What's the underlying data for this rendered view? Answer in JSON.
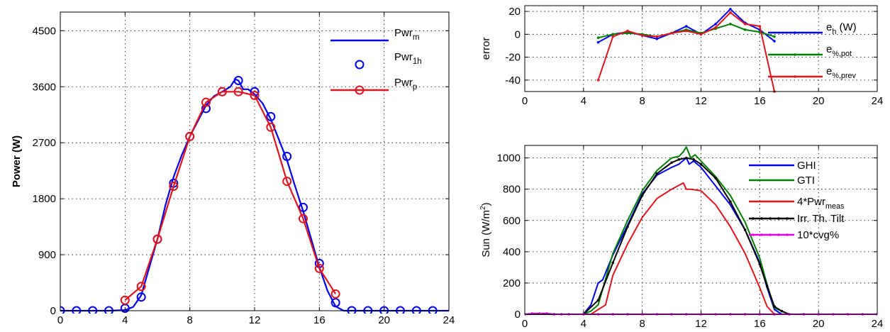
{
  "chart_data": [
    {
      "type": "line",
      "title": "",
      "xlabel": "",
      "ylabel": "Power (W)",
      "xlim": [
        0,
        24
      ],
      "ylim": [
        0,
        4800
      ],
      "xticks": [
        0,
        4,
        8,
        12,
        16,
        20,
        24
      ],
      "yticks": [
        0,
        900,
        1800,
        2700,
        3600,
        4500
      ],
      "grid": true,
      "legend_position": "top-right",
      "series": [
        {
          "label_main": "Pwr",
          "label_sub": "m",
          "style": "line",
          "color": "#0000ee",
          "x": [
            0,
            1,
            2,
            3,
            4,
            4.5,
            5,
            5.5,
            6,
            6.5,
            7,
            7.5,
            8,
            8.5,
            9,
            9.5,
            10,
            10.5,
            10.8,
            11,
            11.3,
            11.6,
            12,
            12.5,
            13,
            13.5,
            14,
            14.5,
            15,
            15.5,
            16,
            16.5,
            17,
            17.5,
            18,
            19,
            20,
            21,
            22,
            23,
            24
          ],
          "y": [
            0,
            0,
            0,
            0,
            10,
            60,
            250,
            700,
            1150,
            1700,
            2150,
            2500,
            2800,
            3050,
            3300,
            3450,
            3520,
            3600,
            3720,
            3700,
            3560,
            3560,
            3480,
            3330,
            3080,
            2750,
            2420,
            2000,
            1600,
            1150,
            700,
            320,
            70,
            0,
            0,
            0,
            0,
            0,
            0,
            0,
            0
          ]
        },
        {
          "label_main": "Pwr",
          "label_sub": "1h",
          "style": "markers",
          "color": "#0000ee",
          "x": [
            0,
            1,
            2,
            3,
            4,
            5,
            6,
            7,
            8,
            9,
            10,
            11,
            12,
            13,
            14,
            15,
            16,
            17,
            18,
            19,
            20,
            21,
            22,
            23
          ],
          "y": [
            0,
            0,
            0,
            0,
            40,
            220,
            1150,
            2050,
            2800,
            3250,
            3520,
            3700,
            3520,
            3120,
            2480,
            1660,
            760,
            130,
            0,
            0,
            0,
            0,
            0,
            0
          ]
        },
        {
          "label_main": "Pwr",
          "label_sub": "p",
          "style": "line+markers",
          "color": "#e0141c",
          "x": [
            4,
            5,
            6,
            7,
            8,
            9,
            10,
            11,
            12,
            13,
            14,
            15,
            16,
            17
          ],
          "y": [
            170,
            390,
            1150,
            2000,
            2800,
            3350,
            3520,
            3520,
            3460,
            2950,
            2080,
            1480,
            680,
            270
          ]
        }
      ]
    },
    {
      "type": "line",
      "title": "",
      "xlabel": "",
      "ylabel": "error",
      "xlim": [
        0,
        24
      ],
      "ylim": [
        -50,
        25
      ],
      "xticks": [
        0,
        4,
        8,
        12,
        16,
        20,
        24
      ],
      "yticks": [
        -40,
        -20,
        0,
        20
      ],
      "grid": true,
      "legend_position": "top-right",
      "series": [
        {
          "label_main": "e",
          "label_sub": "h",
          "label_suffix": " (W)",
          "color": "#0000ee",
          "x": [
            5,
            6,
            7,
            8,
            9,
            10,
            11,
            12,
            13,
            14,
            15,
            16,
            17
          ],
          "y": [
            -7,
            0,
            2,
            -1,
            -4,
            1,
            7,
            0,
            9,
            22,
            10,
            4,
            -6
          ]
        },
        {
          "label_main": "e",
          "label_sub": "%,pot",
          "label_suffix": "",
          "color": "#008000",
          "x": [
            5,
            6,
            7,
            8,
            9,
            10,
            11,
            12,
            13,
            14,
            15,
            16,
            17
          ],
          "y": [
            -3,
            0,
            1,
            0,
            -2,
            1,
            4,
            1,
            5,
            9,
            4,
            2,
            -2
          ]
        },
        {
          "label_main": "e",
          "label_sub": "%,prev",
          "label_suffix": "",
          "color": "#e0141c",
          "x": [
            5,
            6,
            7,
            8,
            9,
            10,
            11,
            12,
            13,
            14,
            15,
            16,
            17
          ],
          "y": [
            -40,
            -2,
            3,
            -1,
            -2,
            1,
            3,
            0,
            6,
            19,
            9,
            7,
            -50
          ]
        }
      ]
    },
    {
      "type": "line",
      "title": "",
      "xlabel": "",
      "ylabel": "Sun (W/m",
      "ylabel_sup": "2",
      "ylabel_end": ")",
      "xlim": [
        0,
        24
      ],
      "ylim": [
        0,
        1080
      ],
      "xticks": [
        0,
        4,
        8,
        12,
        16,
        20,
        24
      ],
      "yticks": [
        0,
        200,
        400,
        600,
        800,
        1000
      ],
      "grid": true,
      "legend_position": "top-right",
      "series": [
        {
          "label_main": "GHI",
          "label_sub": "",
          "color": "#0000ee",
          "markers": false,
          "x": [
            0,
            4,
            4.5,
            5,
            5.3,
            6,
            7,
            8,
            9,
            10,
            10.5,
            11,
            11.2,
            11.5,
            12,
            13,
            14,
            15,
            16,
            16.5,
            17,
            17.5,
            18,
            24
          ],
          "y": [
            0,
            0,
            60,
            200,
            220,
            380,
            570,
            770,
            890,
            940,
            960,
            1000,
            960,
            980,
            940,
            820,
            700,
            540,
            330,
            170,
            30,
            0,
            0,
            0
          ]
        },
        {
          "label_main": "GTI",
          "label_sub": "",
          "color": "#008000",
          "markers": false,
          "x": [
            0,
            4,
            4.5,
            5,
            6,
            7,
            8,
            9,
            10,
            10.5,
            10.8,
            11,
            11.3,
            11.6,
            12,
            13,
            14,
            15,
            16,
            16.5,
            17,
            18,
            24
          ],
          "y": [
            0,
            0,
            20,
            60,
            390,
            600,
            790,
            920,
            1000,
            1010,
            1040,
            1070,
            1000,
            1020,
            980,
            880,
            760,
            590,
            360,
            190,
            40,
            0,
            0
          ]
        },
        {
          "label_main": "4*Pwr",
          "label_sub": "meas",
          "color": "#e0141c",
          "markers": false,
          "x": [
            0,
            4.5,
            5,
            5.5,
            6,
            7,
            8,
            9,
            10,
            10.8,
            11,
            11.3,
            12,
            13,
            14,
            15,
            16,
            16.5,
            17,
            24
          ],
          "y": [
            0,
            0,
            30,
            60,
            250,
            450,
            620,
            740,
            800,
            840,
            800,
            800,
            790,
            700,
            560,
            390,
            170,
            50,
            0,
            0
          ]
        },
        {
          "label_main": "Irr. Th. Tilt",
          "label_sub": "",
          "color": "#000000",
          "markers": true,
          "x": [
            0,
            4,
            5,
            6,
            7,
            8,
            9,
            10,
            10.5,
            11,
            11.5,
            12,
            13,
            14,
            15,
            16,
            16.5,
            17,
            17.5,
            18,
            24
          ],
          "y": [
            0,
            0,
            90,
            330,
            560,
            760,
            900,
            970,
            990,
            1000,
            990,
            960,
            870,
            720,
            540,
            320,
            180,
            50,
            20,
            0,
            0
          ]
        },
        {
          "label_main": "10*cvg%",
          "label_sub": "",
          "color": "#e000e0",
          "markers": true,
          "x": [
            0,
            0.5,
            1,
            1.5,
            2,
            2.5,
            3,
            4,
            5,
            6,
            7,
            8,
            9,
            10,
            11,
            12,
            13,
            14,
            15,
            16,
            17,
            18,
            19,
            20,
            21,
            22,
            23,
            24
          ],
          "y": [
            0,
            5,
            5,
            5,
            0,
            0,
            0,
            0,
            0,
            0,
            0,
            0,
            0,
            0,
            0,
            0,
            0,
            0,
            0,
            0,
            0,
            0,
            0,
            0,
            0,
            0,
            0,
            0
          ]
        }
      ]
    }
  ]
}
